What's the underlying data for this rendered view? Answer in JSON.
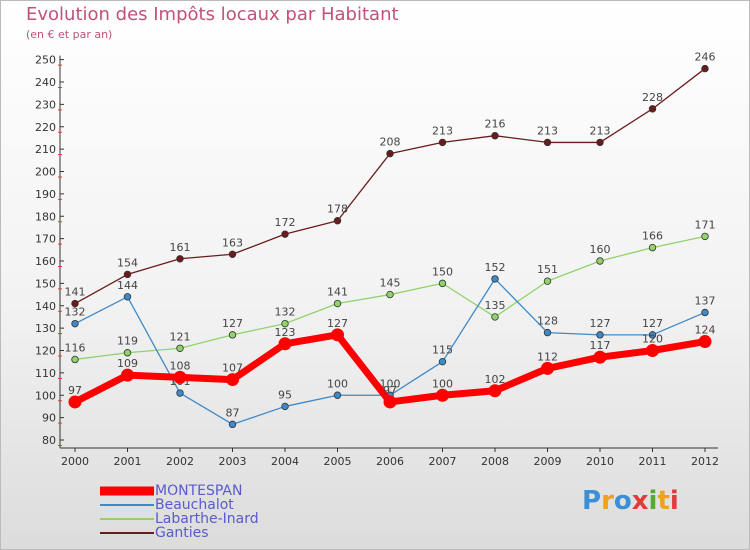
{
  "header": {
    "title": "Evolution des Impôts locaux par Habitant",
    "subtitle": "(en € et par an)"
  },
  "brand": {
    "text": "Proxiti",
    "colors": [
      "#3b8fd4",
      "#f0a020",
      "#3b8fd4",
      "#e23b3b",
      "#55aa33",
      "#f0a020",
      "#e23b3b"
    ]
  },
  "chart_data": {
    "type": "line",
    "title": "Evolution des Impôts locaux par Habitant",
    "subtitle": "(en € et par an)",
    "x": [
      "2000",
      "2001",
      "2002",
      "2003",
      "2004",
      "2005",
      "2006",
      "2007",
      "2008",
      "2009",
      "2010",
      "2011",
      "2012"
    ],
    "ylim": [
      80,
      250
    ],
    "yticks": [
      80,
      90,
      100,
      110,
      120,
      130,
      140,
      150,
      160,
      170,
      180,
      190,
      200,
      210,
      220,
      230,
      240,
      250
    ],
    "grid": false,
    "legend": "bottom-left",
    "series": [
      {
        "name": "MONTESPAN",
        "color": "#ff0000",
        "values": [
          97,
          109,
          108,
          107,
          123,
          127,
          97,
          100,
          102,
          112,
          117,
          120,
          124
        ]
      },
      {
        "name": "Beauchalot",
        "color": "#3f89c8",
        "values": [
          132,
          144,
          101,
          87,
          95,
          100,
          100,
          115,
          152,
          128,
          127,
          127,
          137
        ]
      },
      {
        "name": "Labarthe-Inard",
        "color": "#90d36b",
        "values": [
          116,
          119,
          121,
          127,
          132,
          141,
          145,
          150,
          135,
          151,
          160,
          166,
          171
        ]
      },
      {
        "name": "Ganties",
        "color": "#6b1b1b",
        "values": [
          141,
          154,
          161,
          163,
          172,
          178,
          208,
          213,
          216,
          213,
          213,
          228,
          246
        ]
      }
    ]
  }
}
